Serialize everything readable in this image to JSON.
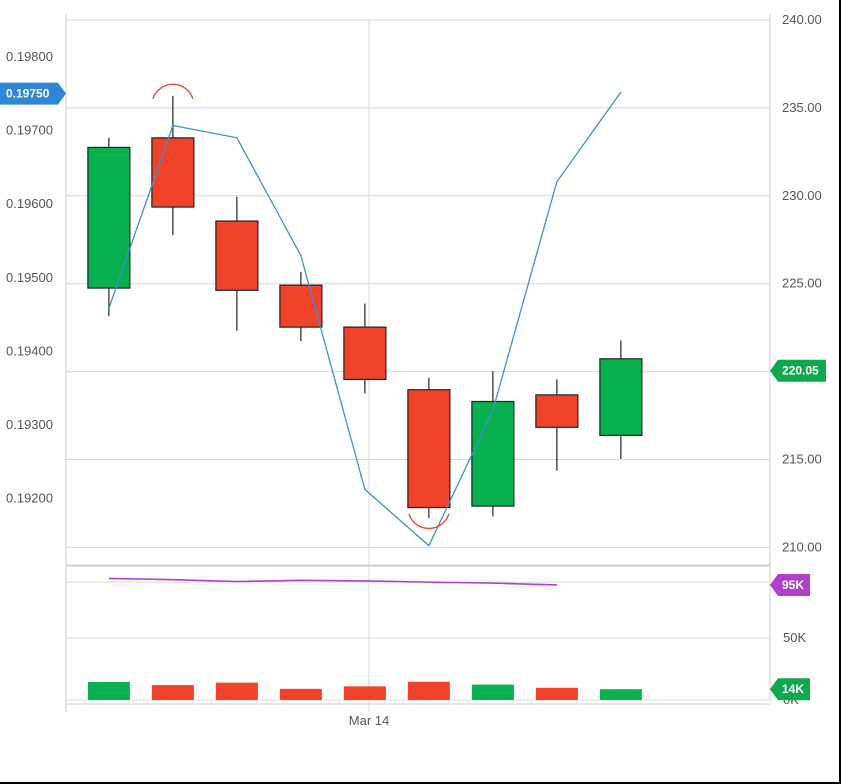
{
  "chart_data": {
    "type": "candlestick",
    "title": "",
    "x_label": "Mar 14",
    "left_axis": {
      "ticks": [
        "0.19200",
        "0.19300",
        "0.19400",
        "0.19500",
        "0.19600",
        "0.19700",
        "0.19800"
      ],
      "tick_values": [
        0.192,
        0.193,
        0.194,
        0.195,
        0.196,
        0.197,
        0.198
      ],
      "range": [
        0.1911,
        0.1985
      ],
      "current_badge": "0.19750",
      "current_value": 0.1975,
      "badge_color": "#2f86d6"
    },
    "right_axis": {
      "ticks": [
        "210.00",
        "215.00",
        "220.00",
        "225.00",
        "230.00",
        "235.00",
        "240.00"
      ],
      "tick_values": [
        210,
        215,
        220,
        225,
        230,
        235,
        240
      ],
      "range": [
        209,
        240
      ],
      "current_badge": "220.05",
      "current_value": 220.05,
      "badge_color": "#0fa84f"
    },
    "candles": [
      {
        "open": 0.19486,
        "high": 0.1969,
        "low": 0.19448,
        "close": 0.19677,
        "direction": "up"
      },
      {
        "open": 0.1969,
        "high": 0.19747,
        "low": 0.19558,
        "close": 0.19596,
        "direction": "down"
      },
      {
        "open": 0.19577,
        "high": 0.1961,
        "low": 0.19428,
        "close": 0.19483,
        "direction": "down"
      },
      {
        "open": 0.1949,
        "high": 0.19508,
        "low": 0.19414,
        "close": 0.19433,
        "direction": "down"
      },
      {
        "open": 0.19433,
        "high": 0.19465,
        "low": 0.19343,
        "close": 0.19362,
        "direction": "down"
      },
      {
        "open": 0.19348,
        "high": 0.19364,
        "low": 0.19174,
        "close": 0.19188,
        "direction": "down"
      },
      {
        "open": 0.1919,
        "high": 0.19373,
        "low": 0.19176,
        "close": 0.19332,
        "direction": "up"
      },
      {
        "open": 0.19341,
        "high": 0.19362,
        "low": 0.19238,
        "close": 0.19297,
        "direction": "down"
      },
      {
        "open": 0.19286,
        "high": 0.19415,
        "low": 0.19254,
        "close": 0.1939,
        "direction": "up"
      }
    ],
    "overlay_line": {
      "axis": "right",
      "color": "#3a8fd6",
      "values": [
        223.6,
        234.0,
        233.3,
        226.6,
        213.3,
        210.1,
        217.8,
        230.8,
        235.9
      ]
    },
    "markers": [
      {
        "type": "peak",
        "candle_index": 1
      },
      {
        "type": "trough",
        "candle_index": 5
      }
    ],
    "volume": {
      "ticks": [
        "0K",
        "50K"
      ],
      "tick_values": [
        0,
        50
      ],
      "range": [
        0,
        108
      ],
      "bars_k": [
        14.5,
        12,
        14,
        9,
        11,
        14.7,
        12.4,
        9.8,
        8.7
      ],
      "moving_average": {
        "color": "#b040c8",
        "values": [
          98,
          97,
          95.5,
          96.5,
          96,
          95,
          94.2,
          92.7
        ]
      },
      "ma_badge": "95K",
      "ma_badge_color": "#b040c8",
      "last_badge": "14K",
      "last_badge_color": "#0fa84f"
    },
    "colors": {
      "up": "#08b050",
      "down": "#f0432a",
      "grid": "#d8d8d8",
      "marker": "#e8452d"
    }
  }
}
